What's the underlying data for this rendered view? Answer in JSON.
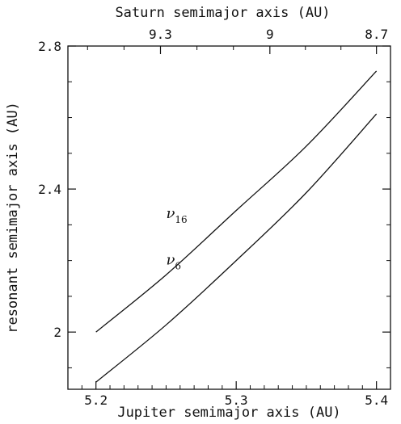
{
  "chart_data": {
    "type": "line",
    "title": "",
    "xlabel": "Jupiter semimajor axis (AU)",
    "x2label": "Saturn semimajor axis (AU)",
    "ylabel": "resonant semimajor axis (AU)",
    "xlim": [
      5.18,
      5.41
    ],
    "ylim": [
      1.84,
      2.8
    ],
    "x_ticks": [
      5.2,
      5.3,
      5.4
    ],
    "x_tick_labels": [
      "5.2",
      "5.3",
      "5.4"
    ],
    "y_ticks": [
      2.0,
      2.4,
      2.8
    ],
    "y_tick_labels": [
      "2",
      "2.4",
      "2.8"
    ],
    "x2_ticks_at_bottom_x": [
      5.246,
      5.324,
      5.4
    ],
    "x2_tick_labels": [
      "9.3",
      "9",
      "8.7"
    ],
    "grid": false,
    "legend": "none",
    "series": [
      {
        "name": "ν16",
        "label_main": "ν",
        "label_sub": "16",
        "label_at": [
          5.265,
          2.305
        ],
        "x": [
          5.2,
          5.25,
          5.3,
          5.35,
          5.4
        ],
        "y": [
          2.0,
          2.16,
          2.34,
          2.52,
          2.73
        ]
      },
      {
        "name": "ν6",
        "label_main": "ν",
        "label_sub": "6",
        "label_at": [
          5.265,
          2.175
        ],
        "x": [
          5.2,
          5.25,
          5.3,
          5.35,
          5.4
        ],
        "y": [
          1.86,
          2.02,
          2.2,
          2.39,
          2.61
        ]
      }
    ]
  }
}
